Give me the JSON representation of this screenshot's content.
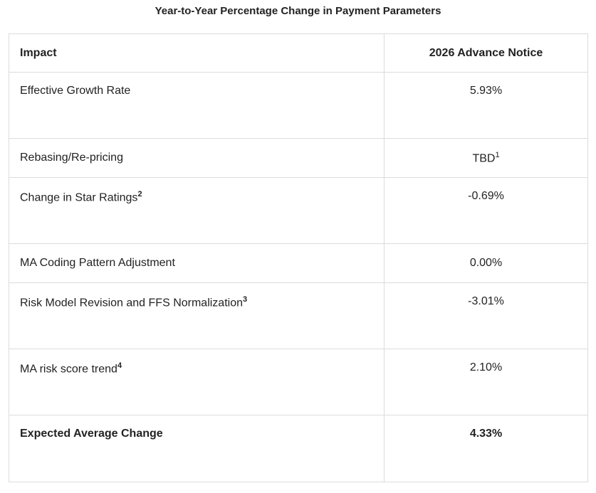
{
  "title": "Year-to-Year Percentage Change in Payment Parameters",
  "columns": [
    "Impact",
    "2026 Advance Notice"
  ],
  "rows": [
    {
      "impact": "Effective Growth Rate",
      "footnote": "",
      "value": "5.93%",
      "value_footnote": ""
    },
    {
      "impact": "Rebasing/Re-pricing",
      "footnote": "",
      "value": "TBD",
      "value_footnote": "1"
    },
    {
      "impact": "Change in Star Ratings",
      "footnote": "2",
      "value": "-0.69%",
      "value_footnote": ""
    },
    {
      "impact": "MA Coding Pattern Adjustment",
      "footnote": "",
      "value": "0.00%",
      "value_footnote": ""
    },
    {
      "impact": "Risk Model Revision and FFS Normalization",
      "footnote": "3",
      "value": "-3.01%",
      "value_footnote": ""
    },
    {
      "impact": "MA risk score trend",
      "footnote": "4",
      "value": "2.10%",
      "value_footnote": ""
    },
    {
      "impact": "Expected Average Change",
      "footnote": "",
      "value": "4.33%",
      "value_footnote": ""
    }
  ]
}
